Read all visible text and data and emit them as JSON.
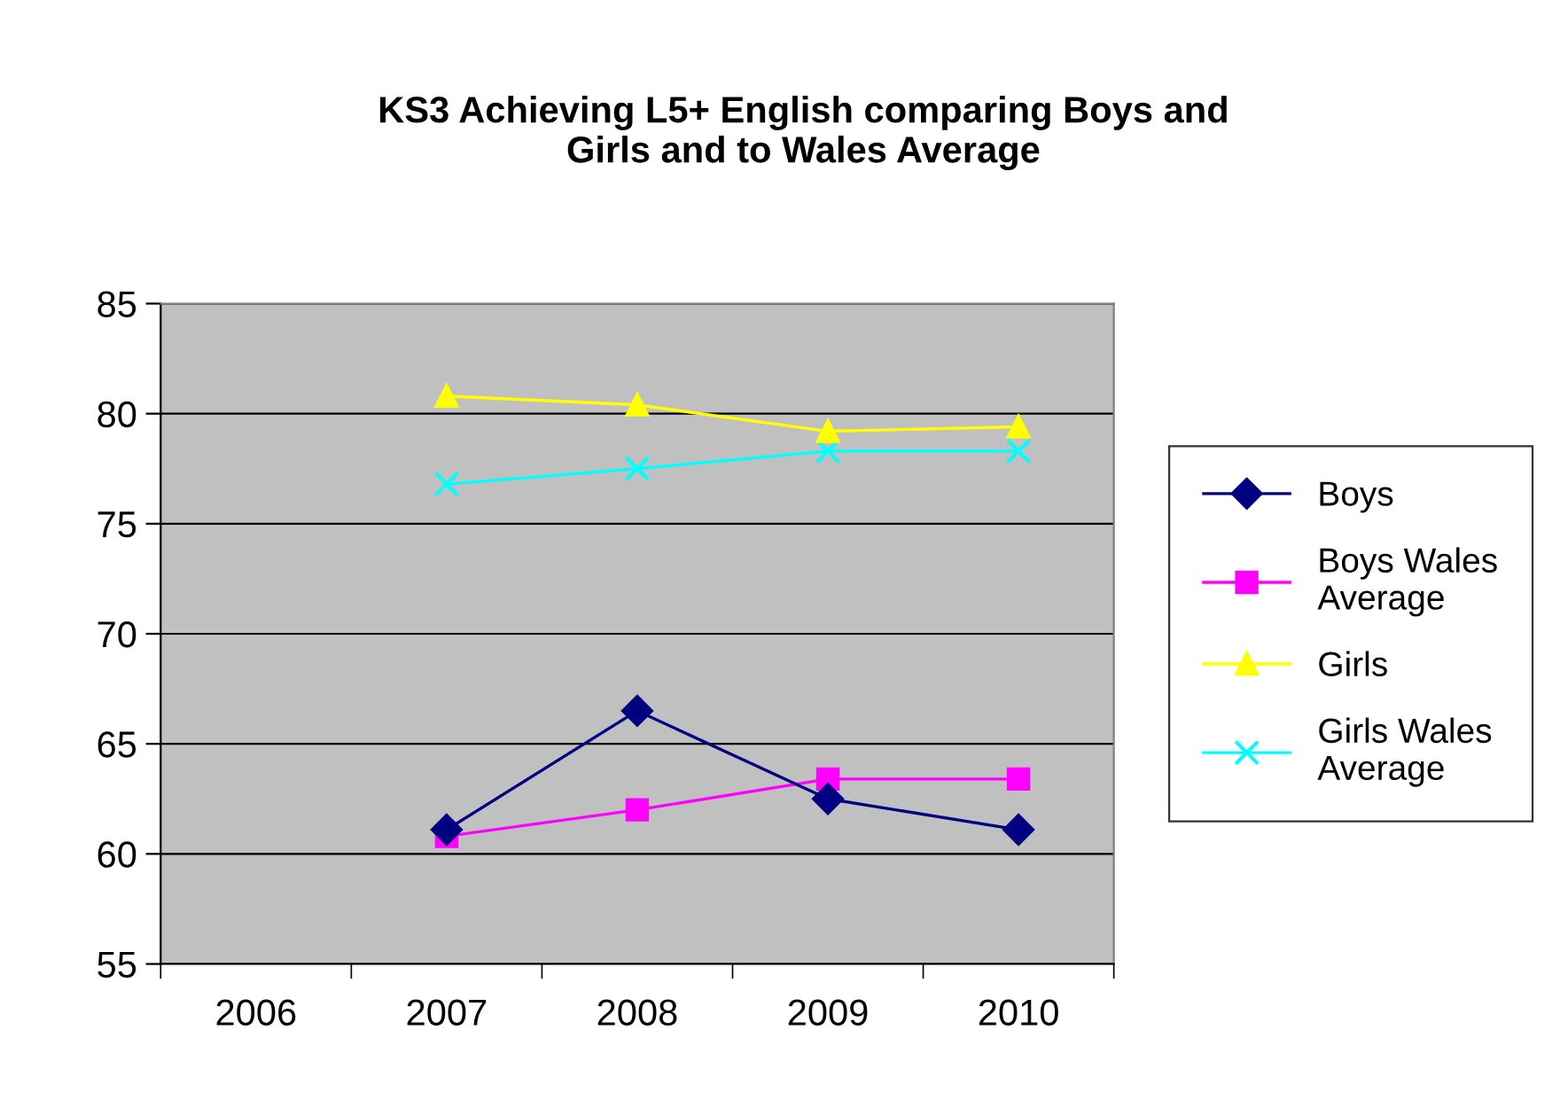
{
  "chart_data": {
    "type": "line",
    "title": "KS3 Achieving L5+ English comparing Boys and Girls and to Wales Average",
    "categories": [
      "2006",
      "2007",
      "2008",
      "2009",
      "2010"
    ],
    "series": [
      {
        "name": "Boys",
        "color": "#000080",
        "marker": "diamond",
        "values": [
          null,
          61.1,
          66.5,
          62.5,
          61.1
        ]
      },
      {
        "name": "Boys Wales Average",
        "color": "#ff00ff",
        "marker": "square",
        "values": [
          null,
          60.8,
          62.0,
          63.4,
          63.4
        ]
      },
      {
        "name": "Girls",
        "color": "#ffff00",
        "marker": "triangle",
        "values": [
          null,
          80.8,
          80.4,
          79.2,
          79.4
        ]
      },
      {
        "name": "Girls Wales Average",
        "color": "#00ffff",
        "marker": "cross",
        "values": [
          null,
          76.8,
          77.5,
          78.3,
          78.3
        ]
      }
    ],
    "ylim": [
      55,
      85
    ],
    "yticks": [
      55,
      60,
      65,
      70,
      75,
      80,
      85
    ],
    "grid": "y",
    "legend": "right"
  }
}
